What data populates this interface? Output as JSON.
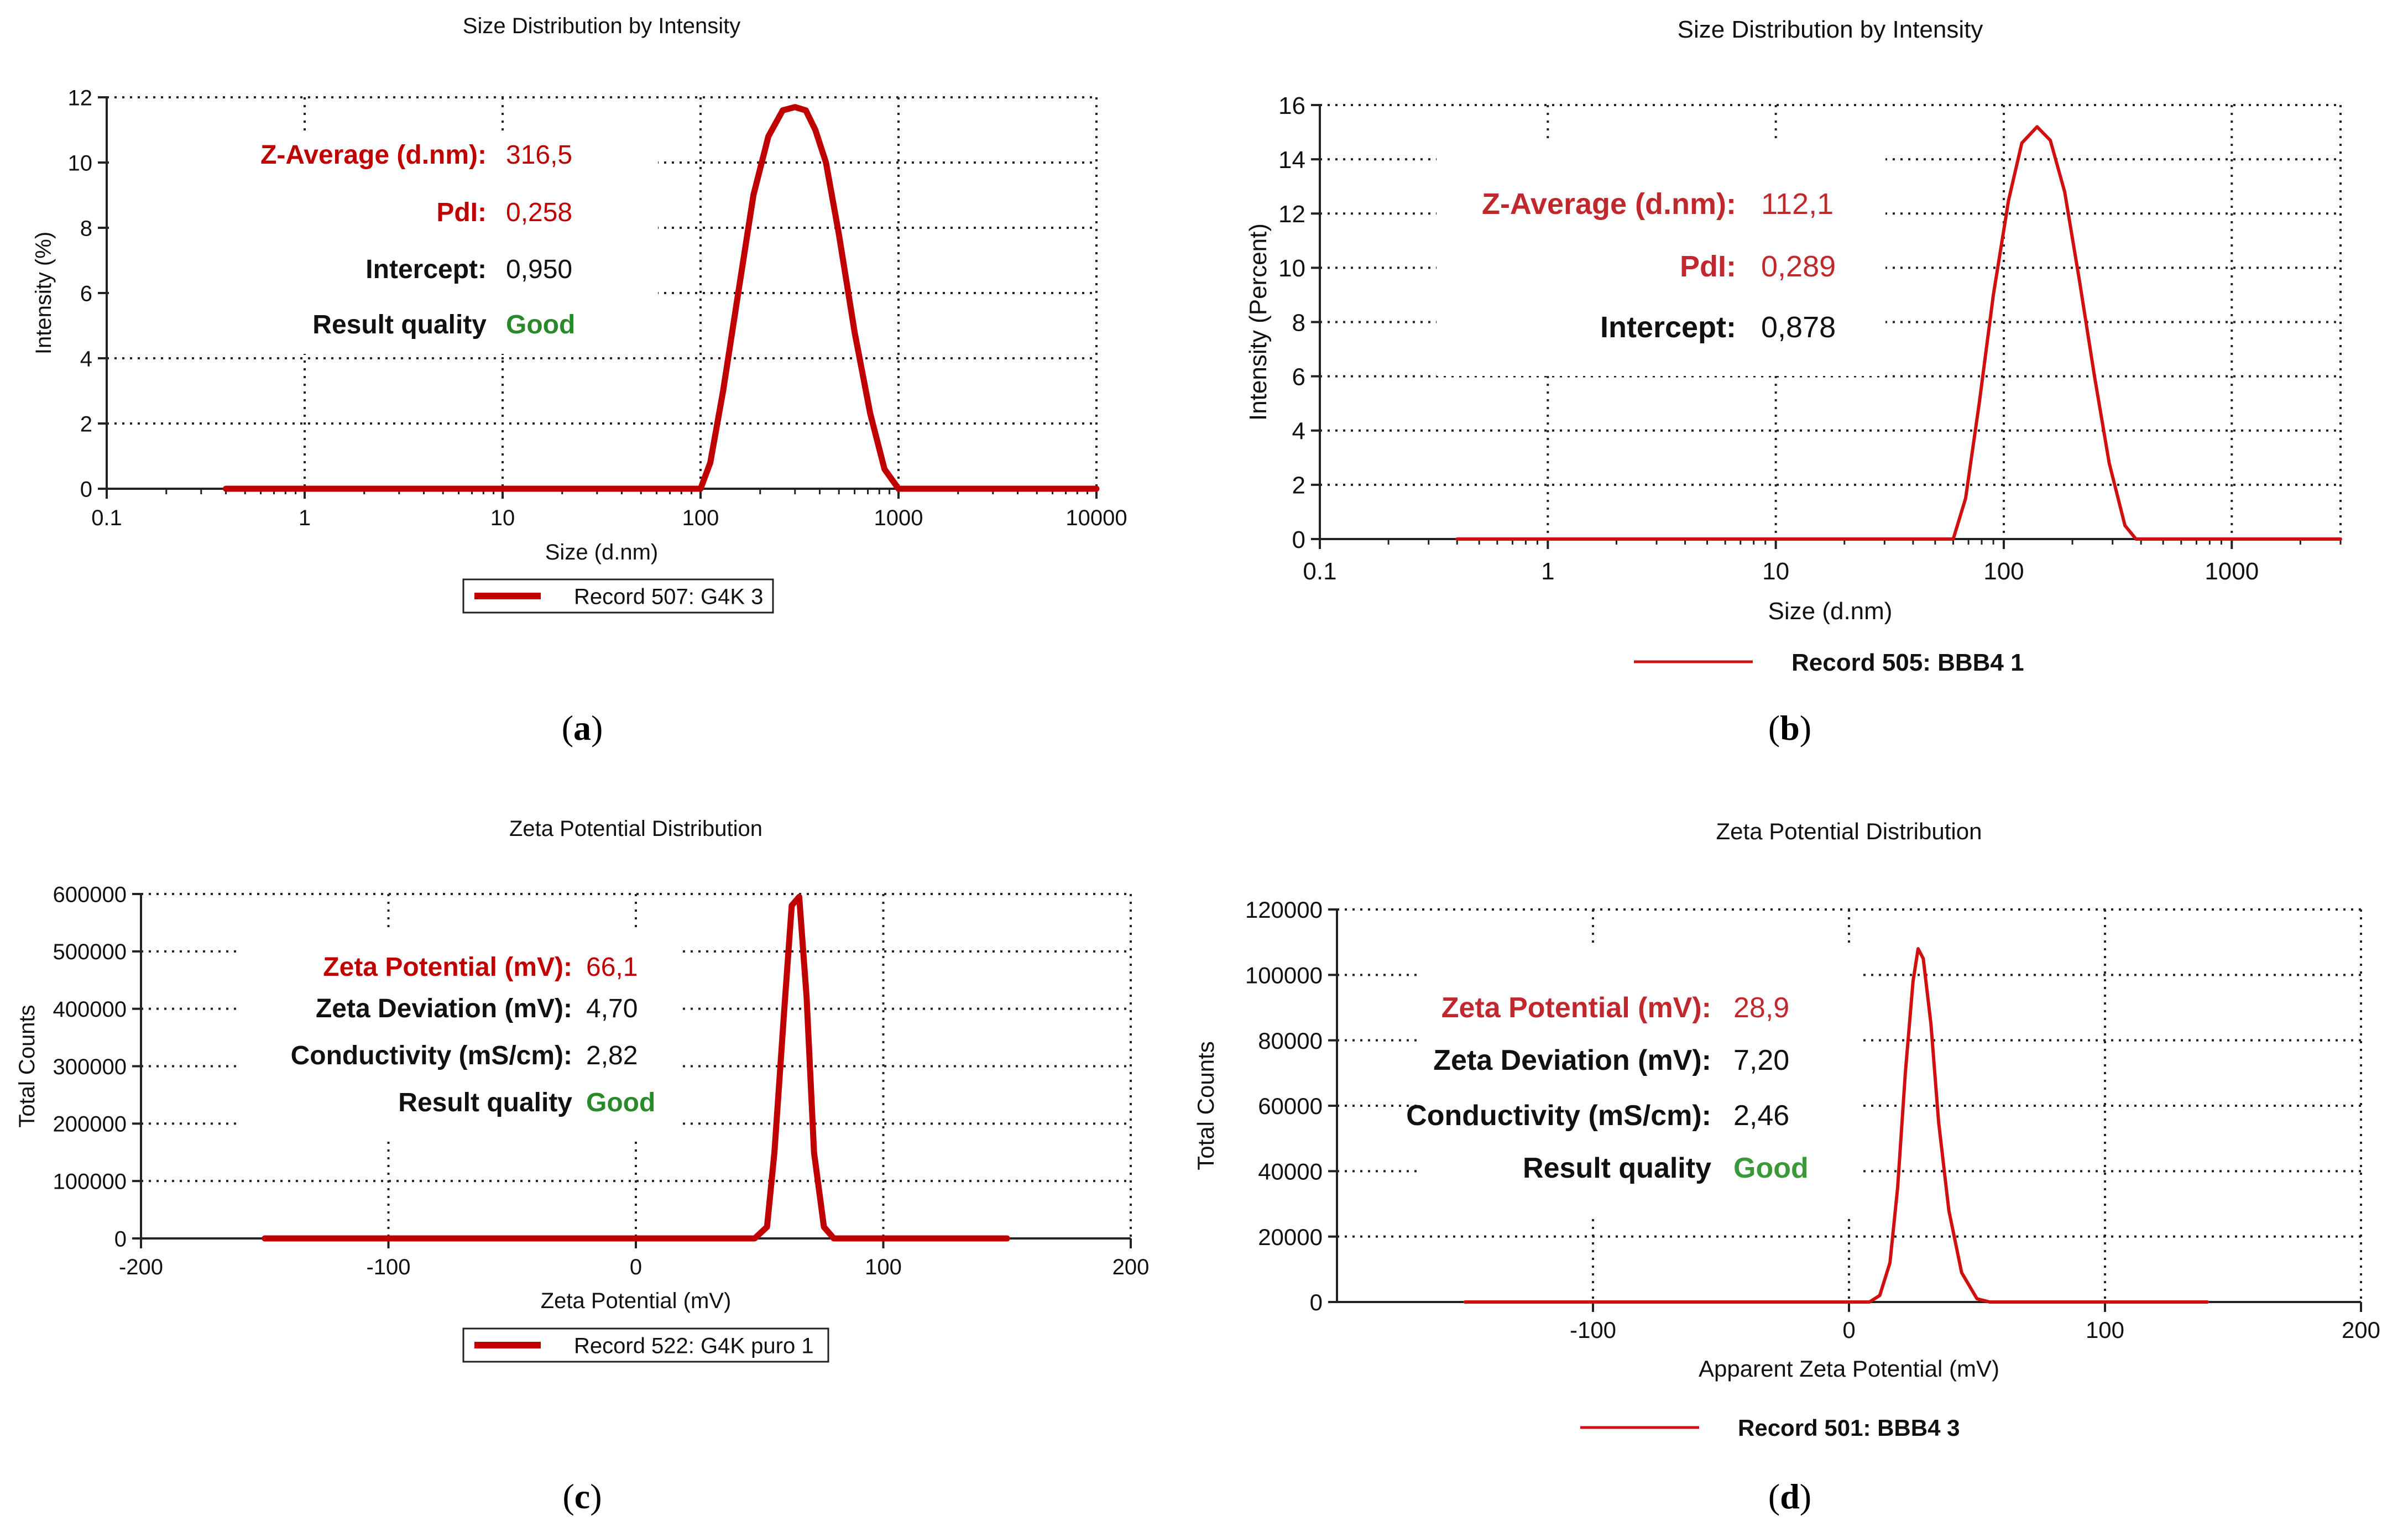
{
  "panels": [
    {
      "id": "a",
      "caption": "(a)",
      "chart_data": {
        "type": "line",
        "title": "Size Distribution by Intensity",
        "xlabel": "Size (d.nm)",
        "ylabel": "Intensity (%)",
        "xscale": "log",
        "xlim": [
          0.1,
          10000
        ],
        "ylim": [
          0,
          12
        ],
        "xticks": [
          0.1,
          1,
          10,
          100,
          1000,
          10000
        ],
        "xtick_labels": [
          "0.1",
          "1",
          "10",
          "100",
          "1000",
          "10000"
        ],
        "yticks": [
          0,
          2,
          4,
          6,
          8,
          10,
          12
        ],
        "ytick_labels": [
          "0",
          "2",
          "4",
          "6",
          "8",
          "10",
          "12"
        ],
        "grid": true,
        "series": [
          {
            "name": "Record 507: G4K 3",
            "color": "#c00000",
            "x": [
              0.4,
              1,
              10,
              60,
              100,
              112,
              130,
              155,
              185,
              220,
              260,
              300,
              340,
              380,
              430,
              500,
              600,
              720,
              850,
              1000,
              1200,
              10000
            ],
            "y": [
              0,
              0,
              0,
              0,
              0,
              0.8,
              3.0,
              6.0,
              9.0,
              10.8,
              11.6,
              11.7,
              11.6,
              11.0,
              10.0,
              7.8,
              4.8,
              2.3,
              0.6,
              0,
              0,
              0
            ]
          }
        ],
        "legend": {
          "label": "Record 507: G4K 3",
          "position": "bottom-center"
        },
        "annotations": [
          {
            "label": "Z-Average (d.nm):",
            "value": "316,5",
            "color": "#c00000"
          },
          {
            "label": "PdI:",
            "value": "0,258",
            "color": "#c00000"
          },
          {
            "label": "Intercept:",
            "value": "0,950",
            "color": "#111111"
          },
          {
            "label": "Result quality",
            "value": "Good",
            "color": "#111111",
            "value_color": "#2a8a2a"
          }
        ]
      }
    },
    {
      "id": "b",
      "caption": "(b)",
      "chart_data": {
        "type": "line",
        "title": "Size Distribution by Intensity",
        "xlabel": "Size (d.nm)",
        "ylabel": "Intensity (Percent)",
        "xscale": "log",
        "xlim": [
          0.1,
          3000
        ],
        "ylim": [
          0,
          16
        ],
        "xticks": [
          0.1,
          1,
          10,
          100,
          1000
        ],
        "xtick_labels": [
          "0.1",
          "1",
          "10",
          "100",
          "1000"
        ],
        "yticks": [
          0,
          2,
          4,
          6,
          8,
          10,
          12,
          14,
          16
        ],
        "ytick_labels": [
          "0",
          "2",
          "4",
          "6",
          "8",
          "10",
          "12",
          "14",
          "16"
        ],
        "grid": true,
        "series": [
          {
            "name": "Record 505: BBB4  1",
            "color": "#d01010",
            "x": [
              0.4,
              1,
              10,
              50,
              60,
              68,
              78,
              90,
              105,
              120,
              140,
              160,
              185,
              215,
              250,
              290,
              340,
              380,
              3000
            ],
            "y": [
              0,
              0,
              0,
              0,
              0,
              1.5,
              5.0,
              9.0,
              12.5,
              14.6,
              15.2,
              14.7,
              12.8,
              9.5,
              6.0,
              2.8,
              0.5,
              0,
              0
            ]
          }
        ],
        "legend": {
          "label": "Record 505: BBB4  1",
          "position": "bottom-center"
        },
        "annotations": [
          {
            "label": "Z-Average (d.nm):",
            "value": "112,1",
            "color": "#c0282d"
          },
          {
            "label": "PdI:",
            "value": "0,289",
            "color": "#c0282d"
          },
          {
            "label": "Intercept:",
            "value": "0,878",
            "color": "#111111"
          }
        ]
      }
    },
    {
      "id": "c",
      "caption": "(c)",
      "chart_data": {
        "type": "line",
        "title": "Zeta Potential Distribution",
        "xlabel": "Zeta Potential (mV)",
        "ylabel": "Total Counts",
        "xlim": [
          -200,
          200
        ],
        "ylim": [
          0,
          600000
        ],
        "xticks": [
          -200,
          -100,
          0,
          100,
          200
        ],
        "xtick_labels": [
          "-200",
          "-100",
          "0",
          "100",
          "200"
        ],
        "yticks": [
          0,
          100000,
          200000,
          300000,
          400000,
          500000,
          600000
        ],
        "ytick_labels": [
          "0",
          "100000",
          "200000",
          "300000",
          "400000",
          "500000",
          "600000"
        ],
        "grid": true,
        "series": [
          {
            "name": "Record 522: G4K puro 1",
            "color": "#c00000",
            "x": [
              -150,
              0,
              48,
              53,
              56,
              60,
              63,
              66,
              69,
              72,
              76,
              80,
              84,
              150
            ],
            "y": [
              0,
              0,
              0,
              20000,
              150000,
              400000,
              580000,
              595000,
              420000,
              150000,
              20000,
              0,
              0,
              0
            ]
          }
        ],
        "legend": {
          "label": "Record 522: G4K puro 1",
          "position": "bottom-center"
        },
        "annotations": [
          {
            "label": "Zeta Potential (mV):",
            "value": "66,1",
            "color": "#c00000"
          },
          {
            "label": "Zeta Deviation (mV):",
            "value": "4,70",
            "color": "#111111"
          },
          {
            "label": "Conductivity (mS/cm):",
            "value": "2,82",
            "color": "#111111"
          },
          {
            "label": "Result quality",
            "value": "Good",
            "color": "#111111",
            "value_color": "#2a8a2a"
          }
        ]
      }
    },
    {
      "id": "d",
      "caption": "(d)",
      "chart_data": {
        "type": "line",
        "title": "Zeta Potential Distribution",
        "xlabel": "Apparent Zeta Potential (mV)",
        "ylabel": "Total Counts",
        "xlim": [
          -200,
          200
        ],
        "ylim": [
          0,
          120000
        ],
        "xticks": [
          -100,
          0,
          100,
          200
        ],
        "xtick_labels": [
          "-100",
          "0",
          "100",
          "200"
        ],
        "yticks": [
          0,
          20000,
          40000,
          60000,
          80000,
          100000,
          120000
        ],
        "ytick_labels": [
          "0",
          "20000",
          "40000",
          "60000",
          "80000",
          "100000",
          "120000"
        ],
        "grid": true,
        "series": [
          {
            "name": "Record 501: BBB4  3",
            "color": "#d01010",
            "x": [
              -150,
              0,
              8,
              12,
              16,
              19,
              22,
              25,
              27,
              29,
              32,
              35,
              39,
              44,
              50,
              55,
              140
            ],
            "y": [
              0,
              0,
              0,
              2000,
              12000,
              35000,
              70000,
              98000,
              108000,
              105000,
              85000,
              55000,
              28000,
              9000,
              1000,
              0,
              0
            ]
          }
        ],
        "legend": {
          "label": "Record 501: BBB4  3",
          "position": "bottom-center"
        },
        "annotations": [
          {
            "label": "Zeta Potential (mV):",
            "value": "28,9",
            "color": "#c0282d"
          },
          {
            "label": "Zeta Deviation (mV):",
            "value": "7,20",
            "color": "#111111"
          },
          {
            "label": "Conductivity (mS/cm):",
            "value": "2,46",
            "color": "#111111"
          },
          {
            "label": "Result quality",
            "value": "Good",
            "color": "#111111",
            "value_color": "#3a9a3a"
          }
        ]
      }
    }
  ]
}
